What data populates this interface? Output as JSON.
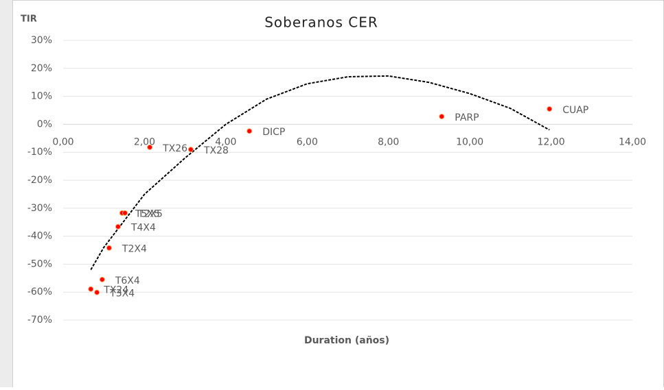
{
  "chart_data": {
    "type": "scatter",
    "title": "Soberanos CER",
    "y_label": "TIR",
    "x_label": "Duration (años)",
    "labels": [
      "CUAP",
      "PARP",
      "DICP",
      "TX28",
      "TX26",
      "T5X5",
      "T2X5",
      "T4X4",
      "T2X4",
      "T6X4",
      "TX24",
      "T3X4"
    ],
    "x": [
      11.96,
      9.31,
      4.58,
      3.14,
      2.13,
      1.45,
      1.52,
      1.35,
      1.13,
      0.96,
      0.68,
      0.83
    ],
    "values": [
      5.5,
      2.8,
      -2.4,
      -9.0,
      -8.2,
      -31.7,
      -31.7,
      -36.6,
      -44.2,
      -55.5,
      -58.9,
      -60.1
    ],
    "color": "#ff0000",
    "trendline": {
      "x": [
        0.68,
        1,
        2,
        3,
        4,
        5,
        6,
        7,
        8,
        9,
        10,
        11,
        11.96
      ],
      "values": [
        -52,
        -44,
        -25,
        -12,
        0,
        9,
        14.5,
        17,
        17.3,
        15,
        11,
        5.7,
        -2
      ]
    },
    "xlim": [
      0,
      14
    ],
    "ylim": [
      -70,
      30
    ],
    "xticks": [
      {
        "value": 0,
        "label": "0,00"
      },
      {
        "value": 2,
        "label": "2,00"
      },
      {
        "value": 4,
        "label": "4,00"
      },
      {
        "value": 6,
        "label": "6,00"
      },
      {
        "value": 8,
        "label": "8,00"
      },
      {
        "value": 10,
        "label": "10,00"
      },
      {
        "value": 12,
        "label": "12,00"
      },
      {
        "value": 14,
        "label": "14,00"
      }
    ],
    "yticks": [
      {
        "value": 30,
        "label": "30%"
      },
      {
        "value": 20,
        "label": "20%"
      },
      {
        "value": 10,
        "label": "10%"
      },
      {
        "value": 0,
        "label": "0%"
      },
      {
        "value": -10,
        "label": "-10%"
      },
      {
        "value": -20,
        "label": "-20%"
      },
      {
        "value": -30,
        "label": "-30%"
      },
      {
        "value": -40,
        "label": "-40%"
      },
      {
        "value": -50,
        "label": "-50%"
      },
      {
        "value": -60,
        "label": "-60%"
      },
      {
        "value": -70,
        "label": "-70%"
      }
    ],
    "grid": true
  }
}
